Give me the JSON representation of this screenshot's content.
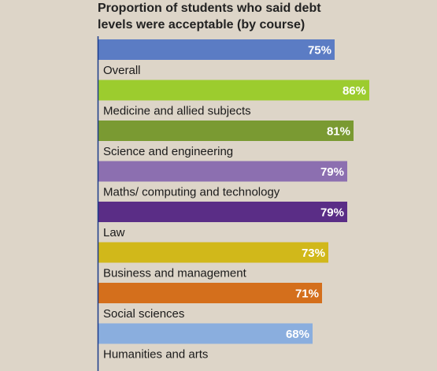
{
  "chart_data": {
    "type": "bar",
    "orientation": "horizontal",
    "title": "Proportion of students who said debt levels were acceptable (by course)",
    "title_lines": [
      "Proportion of students who said debt",
      "levels were acceptable (by course)"
    ],
    "categories": [
      "Overall",
      "Medicine and allied subjects",
      "Science and engineering",
      "Maths/ computing and technology",
      "Law",
      "Business and management",
      "Social sciences",
      "Humanities and arts"
    ],
    "values": [
      75,
      86,
      81,
      79,
      79,
      73,
      71,
      68
    ],
    "value_labels": [
      "75%",
      "86%",
      "81%",
      "79%",
      "79%",
      "73%",
      "71%",
      "68%"
    ],
    "unit": "%",
    "colors": [
      "#5b7cc4",
      "#9ccc2e",
      "#7a9a32",
      "#8c6fb0",
      "#5a2d86",
      "#d1b81a",
      "#d46f1c",
      "#8aaede"
    ],
    "background": "#ddd5c8",
    "axis_color": "#1a3a8a",
    "xlim": [
      0,
      100
    ],
    "grid": false,
    "legend": "none"
  }
}
